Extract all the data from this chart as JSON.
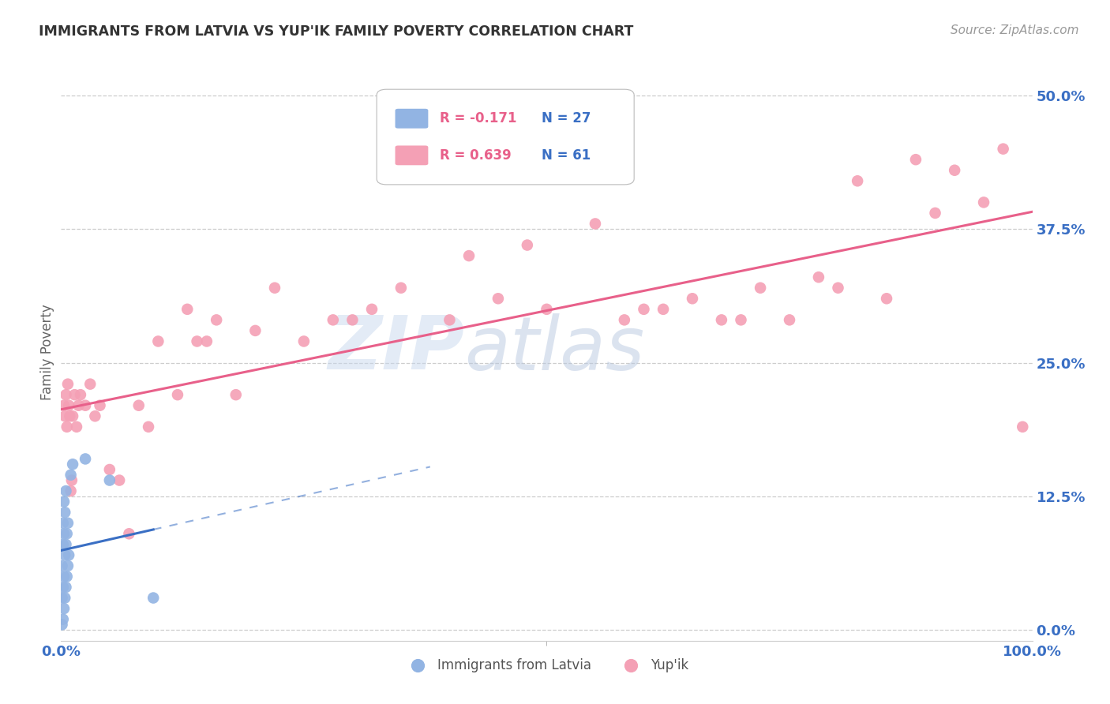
{
  "title": "IMMIGRANTS FROM LATVIA VS YUP'IK FAMILY POVERTY CORRELATION CHART",
  "source_text": "Source: ZipAtlas.com",
  "ylabel": "Family Poverty",
  "ytick_labels": [
    "0.0%",
    "12.5%",
    "25.0%",
    "37.5%",
    "50.0%"
  ],
  "ytick_values": [
    0.0,
    0.125,
    0.25,
    0.375,
    0.5
  ],
  "xlim": [
    0.0,
    1.0
  ],
  "ylim": [
    -0.01,
    0.53
  ],
  "legend_r_latvia": "R = -0.171",
  "legend_n_latvia": "N = 27",
  "legend_r_yupik": "R = 0.639",
  "legend_n_yupik": "N = 61",
  "watermark_zip": "ZIP",
  "watermark_atlas": "atlas",
  "latvia_color": "#92b4e3",
  "yupik_color": "#f4a0b5",
  "latvia_line_color": "#3a6fc4",
  "yupik_line_color": "#e8608a",
  "background_color": "#ffffff",
  "grid_color": "#c8c8c8",
  "title_color": "#333333",
  "axis_label_color": "#3a6fc4",
  "legend_r_color": "#e8608a",
  "legend_n_color": "#3a6fc4",
  "latvia_scatter_x": [
    0.001,
    0.001,
    0.001,
    0.002,
    0.002,
    0.002,
    0.002,
    0.003,
    0.003,
    0.003,
    0.003,
    0.004,
    0.004,
    0.004,
    0.005,
    0.005,
    0.005,
    0.006,
    0.006,
    0.007,
    0.007,
    0.008,
    0.01,
    0.012,
    0.025,
    0.05,
    0.095
  ],
  "latvia_scatter_y": [
    0.005,
    0.03,
    0.06,
    0.01,
    0.04,
    0.08,
    0.1,
    0.02,
    0.05,
    0.09,
    0.12,
    0.03,
    0.07,
    0.11,
    0.04,
    0.08,
    0.13,
    0.05,
    0.09,
    0.06,
    0.1,
    0.07,
    0.145,
    0.155,
    0.16,
    0.14,
    0.03
  ],
  "yupik_scatter_x": [
    0.003,
    0.004,
    0.005,
    0.006,
    0.007,
    0.008,
    0.009,
    0.01,
    0.011,
    0.012,
    0.014,
    0.016,
    0.018,
    0.02,
    0.025,
    0.03,
    0.035,
    0.04,
    0.05,
    0.06,
    0.07,
    0.08,
    0.09,
    0.1,
    0.12,
    0.13,
    0.14,
    0.15,
    0.16,
    0.18,
    0.2,
    0.22,
    0.25,
    0.28,
    0.3,
    0.32,
    0.35,
    0.4,
    0.42,
    0.45,
    0.48,
    0.5,
    0.55,
    0.58,
    0.6,
    0.62,
    0.65,
    0.68,
    0.7,
    0.72,
    0.75,
    0.78,
    0.8,
    0.82,
    0.85,
    0.88,
    0.9,
    0.92,
    0.95,
    0.97,
    0.99
  ],
  "yupik_scatter_y": [
    0.21,
    0.2,
    0.22,
    0.19,
    0.23,
    0.21,
    0.2,
    0.13,
    0.14,
    0.2,
    0.22,
    0.19,
    0.21,
    0.22,
    0.21,
    0.23,
    0.2,
    0.21,
    0.15,
    0.14,
    0.09,
    0.21,
    0.19,
    0.27,
    0.22,
    0.3,
    0.27,
    0.27,
    0.29,
    0.22,
    0.28,
    0.32,
    0.27,
    0.29,
    0.29,
    0.3,
    0.32,
    0.29,
    0.35,
    0.31,
    0.36,
    0.3,
    0.38,
    0.29,
    0.3,
    0.3,
    0.31,
    0.29,
    0.29,
    0.32,
    0.29,
    0.33,
    0.32,
    0.42,
    0.31,
    0.44,
    0.39,
    0.43,
    0.4,
    0.45,
    0.19
  ]
}
